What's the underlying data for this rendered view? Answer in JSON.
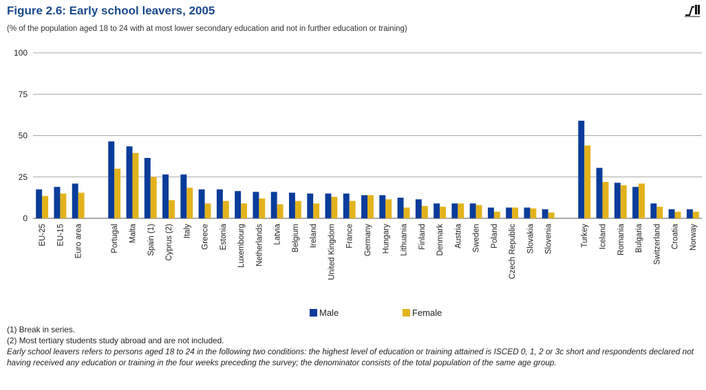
{
  "header": {
    "title": "Figure 2.6: Early school leavers, 2005",
    "subtitle": "(% of the population aged 18 to 24 with at most lower secondary education and not in further education or training)"
  },
  "colors": {
    "male": "#0a3c9a",
    "female": "#e3b21c",
    "axis": "#555555",
    "grid": "#888888"
  },
  "chart_data": {
    "type": "bar",
    "title": "Figure 2.6: Early school leavers, 2005",
    "ylim": [
      0,
      100
    ],
    "yticks": [
      0,
      25,
      50,
      75,
      100
    ],
    "grid": true,
    "legend_position": "bottom-center",
    "groups": [
      [
        "EU-25",
        "EU-15",
        "Euro area"
      ],
      [
        "Portugal",
        "Malta",
        "Spain (1)",
        "Cyprus (2)",
        "Italy",
        "Greece",
        "Estonia",
        "Luxembourg",
        "Netherlands",
        "Latvia",
        "Belgium",
        "Ireland",
        "United Kingdom",
        "France",
        "Germany",
        "Hungary",
        "Lithuania",
        "Finland",
        "Denmark",
        "Austria",
        "Sweden",
        "Poland",
        "Czech Republic",
        "Slovakia",
        "Slovenia"
      ],
      [
        "Turkey",
        "Iceland",
        "Romania",
        "Bulgaria",
        "Switzerland",
        "Croatia",
        "Norway"
      ]
    ],
    "series": [
      {
        "name": "Male",
        "values": [
          [
            17.5,
            19,
            21
          ],
          [
            46.5,
            43.5,
            36.5,
            26.5,
            26.5,
            17.5,
            17.5,
            16.5,
            16,
            16,
            15.5,
            15,
            15,
            15,
            14,
            14,
            12.5,
            11.5,
            9,
            9,
            9,
            6.5,
            6.5,
            6.5,
            5.5
          ],
          [
            59,
            30.5,
            21.5,
            19,
            9,
            5.5,
            5.5
          ]
        ]
      },
      {
        "name": "Female",
        "values": [
          [
            13.5,
            15,
            15.5
          ],
          [
            30,
            39.5,
            25,
            11,
            18.5,
            9,
            10.5,
            9,
            12,
            8.5,
            10.5,
            9,
            13,
            10.5,
            14,
            11.5,
            6.5,
            7.5,
            7,
            9,
            8,
            4,
            6.5,
            6,
            3.5
          ],
          [
            44,
            22,
            20,
            21,
            7,
            4,
            4
          ]
        ]
      }
    ]
  },
  "legend": {
    "male_label": "Male",
    "female_label": "Female"
  },
  "notes": {
    "note1": "(1) Break in series.",
    "note2": "(2) Most tertiary students study abroad and are not included.",
    "definition": "Early school leavers refers to persons aged 18 to 24 in the following two conditions: the highest level of education or training attained is ISCED 0, 1, 2 or 3c short and respondents declared not having received any education or training in the four weeks preceding the survey; the denominator consists of the total population of the same age group."
  }
}
